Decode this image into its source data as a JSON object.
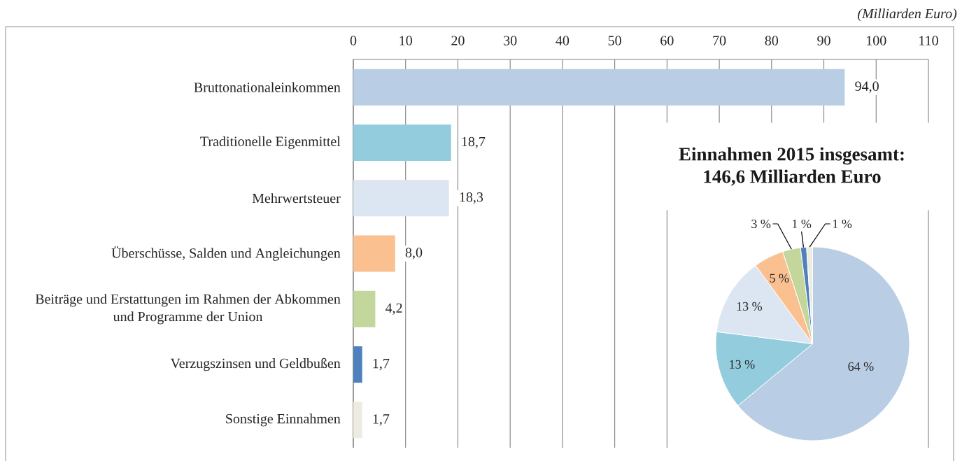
{
  "chart_data": [
    {
      "type": "bar",
      "orientation": "horizontal",
      "xlabel": "(Milliarden Euro)",
      "categories": [
        "Bruttonationaleinkommen",
        "Traditionelle Eigenmittel",
        "Mehrwertsteuer",
        "Überschüsse, Salden und Angleichungen",
        "Beiträge und Erstattungen im Rahmen der Abkommen und Programme der Union",
        "Verzugszinsen und Geldbußen",
        "Sonstige Einnahmen"
      ],
      "values": [
        94.0,
        18.7,
        18.3,
        8.0,
        4.2,
        1.7,
        1.7
      ],
      "colors": [
        "#b9cde5",
        "#93cddd",
        "#dce6f2",
        "#fac090",
        "#c3d69b",
        "#4f81bd",
        "#eeece1"
      ],
      "value_labels": [
        "94,0",
        "18,7",
        "18,3",
        "8,0",
        "4,2",
        "1,7",
        "1,7"
      ],
      "xlim": [
        0,
        110
      ],
      "xticks": [
        0,
        10,
        20,
        30,
        40,
        50,
        60,
        70,
        80,
        90,
        100,
        110
      ],
      "grid": "x"
    },
    {
      "type": "pie",
      "title": "Einnahmen 2015 insgesamt:",
      "subtitle": "146,6 Milliarden Euro",
      "categories": [
        null,
        null,
        null,
        null,
        null,
        null,
        null
      ],
      "values": [
        64,
        13,
        13,
        5,
        3,
        1,
        1
      ],
      "colors": [
        "#b9cde5",
        "#93cddd",
        "#dce6f2",
        "#fac090",
        "#c3d69b",
        "#4f81bd",
        "#eeece1"
      ],
      "value_labels": [
        "64 %",
        "13 %",
        "13 %",
        "5 %",
        "3 %",
        "1 %",
        "1 %"
      ]
    }
  ]
}
